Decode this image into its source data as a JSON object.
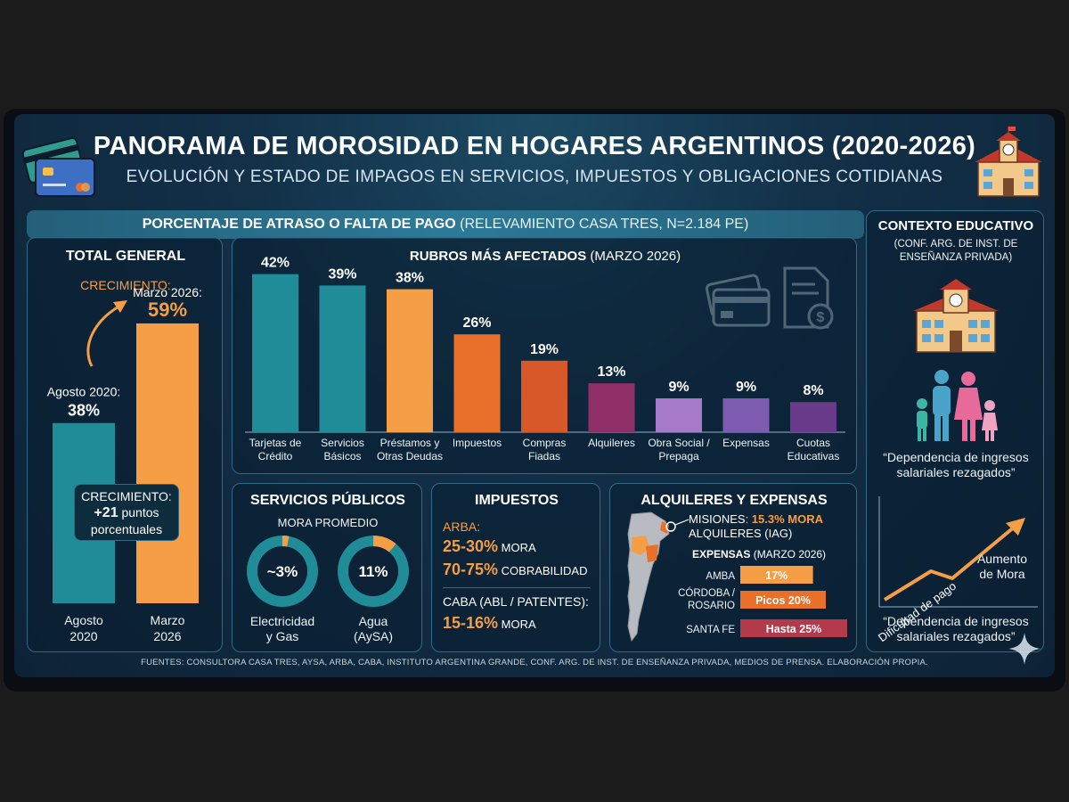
{
  "header": {
    "title": "PANORAMA DE MOROSIDAD EN HOGARES ARGENTINOS (2020-2026)",
    "subtitle": "EVOLUCIÓN Y ESTADO DE IMPAGOS EN SERVICIOS, IMPUESTOS Y OBLIGACIONES COTIDIANAS"
  },
  "banner": {
    "bold": "PORCENTAJE DE ATRASO O FALTA DE PAGO",
    "rest": " (RELEVAMIENTO CASA TRES, N=2.184 PE)"
  },
  "total": {
    "title": "TOTAL GENERAL",
    "growth_label": "CRECIMIENTO:",
    "bar1_caption": "Agosto 2020:",
    "bar1_value": "38%",
    "bar2_caption": "Marzo 2026:",
    "bar2_value": "59%",
    "badge_line1": "CRECIMIENTO:",
    "badge_line2": "+21",
    "badge_line2b": " puntos",
    "badge_line3": "porcentuales",
    "x1_line1": "Agosto",
    "x1_line2": "2020",
    "x2_line1": "Marzo",
    "x2_line2": "2026"
  },
  "rubros": {
    "title_bold": "RUBROS MÁS AFECTADOS",
    "title_rest": " (MARZO 2026)"
  },
  "chart_data": [
    {
      "type": "bar",
      "title": "TOTAL GENERAL",
      "categories": [
        "Agosto 2020",
        "Marzo 2026"
      ],
      "values": [
        38,
        59
      ],
      "value_labels": [
        "38%",
        "59%"
      ],
      "colors": [
        "#1f8c97",
        "#f59e45"
      ],
      "ylim": [
        0,
        65
      ]
    },
    {
      "type": "bar",
      "title": "RUBROS MÁS AFECTADOS (MARZO 2026)",
      "categories": [
        [
          "Tarjetas de",
          "Crédito"
        ],
        [
          "Servicios",
          "Básicos"
        ],
        [
          "Préstamos y",
          "Otras Deudas"
        ],
        [
          "Impuestos"
        ],
        [
          "Compras",
          "Fiadas"
        ],
        [
          "Alquileres"
        ],
        [
          "Obra Social /",
          "Prepaga"
        ],
        [
          "Expensas"
        ],
        [
          "Cuotas",
          "Educativas"
        ]
      ],
      "values": [
        42,
        39,
        38,
        26,
        19,
        13,
        9,
        9,
        8
      ],
      "value_labels": [
        "42%",
        "39%",
        "38%",
        "26%",
        "19%",
        "13%",
        "9%",
        "9%",
        "8%"
      ],
      "colors": [
        "#1f8c97",
        "#1f8c97",
        "#f59e45",
        "#e8702a",
        "#d9582a",
        "#8e2f67",
        "#a779c9",
        "#7d5bb0",
        "#6a3a8a"
      ],
      "ylim": [
        0,
        45
      ]
    },
    {
      "type": "pie",
      "title": "SERVICIOS PÚBLICOS — MORA PROMEDIO",
      "items": [
        {
          "name": "Electricidad y Gas",
          "value": 3,
          "label": "~3%"
        },
        {
          "name": "Agua (AySA)",
          "value": 11,
          "label": "11%"
        }
      ]
    },
    {
      "type": "bar",
      "title": "EXPENSAS (MARZO 2026)",
      "categories": [
        "AMBA",
        "CÓRDOBA / ROSARIO",
        "SANTA FE"
      ],
      "values": [
        17,
        20,
        25
      ],
      "value_labels": [
        "17%",
        "Picos 20%",
        "Hasta 25%"
      ],
      "colors": [
        "#f59e45",
        "#e8702a",
        "#b23a4a"
      ],
      "xlim": [
        0,
        25
      ]
    }
  ],
  "servicios": {
    "title": "SERVICIOS PÚBLICOS",
    "sub": "MORA PROMEDIO",
    "d1_label_1": "Electricidad",
    "d1_label_2": "y Gas",
    "d2_label_1": "Agua",
    "d2_label_2": "(AySA)"
  },
  "impuestos": {
    "title": "IMPUESTOS",
    "arba": "ARBA:",
    "arba_mora_val": "25-30%",
    "arba_mora_lbl": " MORA",
    "arba_cob_val": "70-75%",
    "arba_cob_lbl": " COBRABILIDAD",
    "caba": "CABA (ABL / PATENTES):",
    "caba_val": "15-16%",
    "caba_lbl": " MORA"
  },
  "alquileres": {
    "title": "ALQUILERES Y EXPENSAS",
    "misiones_a": "MISIONES: ",
    "misiones_b": "15.3% MORA",
    "misiones_c": "ALQUILERES (IAG)",
    "exp_bold": "EXPENSAS",
    "exp_rest": " (MARZO 2026)"
  },
  "contexto": {
    "title": "CONTEXTO EDUCATIVO",
    "sub1": "(CONF. ARG. DE INST. DE",
    "sub2": "ENSEÑANZA PRIVADA)",
    "quote1_a": "“Dependencia de ingresos",
    "quote1_b": "salariales rezagados”",
    "trend_a": "Dificultad de pago",
    "trend_b1": "Aumento",
    "trend_b2": "de Mora",
    "quote2_a": "“Dependencia de ingresos",
    "quote2_b": "salariales rezagados”"
  },
  "footer": "FUENTES: CONSULTORA CASA TRES, AYSA, ARBA, CABA, INSTITUTO ARGENTINA GRANDE, CONF. ARG. DE INST. DE ENSEÑANZA PRIVADA, MEDIOS DE PRENSA. ELABORACIÓN PROPIA.",
  "colors": {
    "teal": "#1f8c97",
    "orange": "#f59e45",
    "background": "#123048",
    "panel_border": "#2f6b86"
  }
}
